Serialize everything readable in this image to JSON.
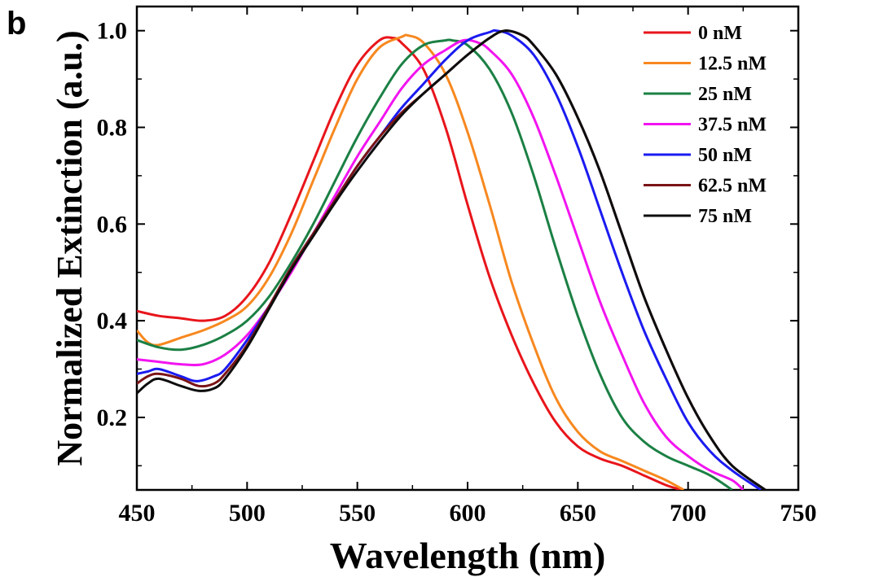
{
  "panel_label": "b",
  "chart_data": {
    "type": "line",
    "title": "",
    "xlabel": "Wavelength (nm)",
    "ylabel": "Normalized Extinction (a.u.)",
    "xlim": [
      450,
      750
    ],
    "ylim": [
      0.05,
      1.05
    ],
    "xticks": [
      450,
      500,
      550,
      600,
      650,
      700,
      750
    ],
    "yticks": [
      0.2,
      0.4,
      0.6,
      0.8,
      1.0
    ],
    "xtick_labels": [
      "450",
      "500",
      "550",
      "600",
      "650",
      "700",
      "750"
    ],
    "ytick_labels": [
      "0.2",
      "0.4",
      "0.6",
      "0.8",
      "1.0"
    ],
    "grid": false,
    "legend_position": "top-right",
    "series": [
      {
        "name": "0 nM",
        "color": "#e8151b",
        "x": [
          450,
          460,
          470,
          480,
          490,
          500,
          510,
          520,
          530,
          540,
          550,
          560,
          566,
          570,
          580,
          590,
          600,
          610,
          620,
          630,
          640,
          650,
          660,
          670,
          680,
          690,
          697
        ],
        "y": [
          0.42,
          0.41,
          0.405,
          0.4,
          0.41,
          0.45,
          0.52,
          0.62,
          0.73,
          0.84,
          0.93,
          0.98,
          0.985,
          0.975,
          0.92,
          0.8,
          0.64,
          0.49,
          0.37,
          0.27,
          0.19,
          0.14,
          0.115,
          0.1,
          0.08,
          0.06,
          0.05
        ]
      },
      {
        "name": "12.5 nM",
        "color": "#f7881f",
        "x": [
          450,
          455,
          460,
          470,
          480,
          490,
          500,
          510,
          520,
          530,
          540,
          550,
          560,
          570,
          573,
          580,
          590,
          600,
          610,
          620,
          630,
          640,
          650,
          660,
          670,
          680,
          690,
          698
        ],
        "y": [
          0.38,
          0.355,
          0.35,
          0.365,
          0.38,
          0.4,
          0.43,
          0.49,
          0.58,
          0.69,
          0.8,
          0.9,
          0.965,
          0.987,
          0.99,
          0.975,
          0.91,
          0.79,
          0.64,
          0.48,
          0.35,
          0.24,
          0.17,
          0.13,
          0.11,
          0.09,
          0.07,
          0.05
        ]
      },
      {
        "name": "25 nM",
        "color": "#1b8044",
        "x": [
          450,
          460,
          470,
          480,
          490,
          500,
          510,
          520,
          530,
          540,
          550,
          560,
          570,
          580,
          590,
          593,
          600,
          610,
          620,
          630,
          640,
          650,
          660,
          670,
          680,
          690,
          700,
          710,
          720
        ],
        "y": [
          0.36,
          0.345,
          0.34,
          0.35,
          0.37,
          0.4,
          0.45,
          0.52,
          0.6,
          0.69,
          0.78,
          0.86,
          0.93,
          0.97,
          0.98,
          0.98,
          0.97,
          0.92,
          0.83,
          0.7,
          0.55,
          0.41,
          0.29,
          0.2,
          0.15,
          0.12,
          0.1,
          0.08,
          0.05
        ]
      },
      {
        "name": "37.5 nM",
        "color": "#f214f0",
        "x": [
          450,
          460,
          470,
          480,
          490,
          500,
          510,
          520,
          530,
          540,
          550,
          560,
          570,
          580,
          590,
          598,
          605,
          610,
          620,
          630,
          640,
          650,
          660,
          670,
          680,
          690,
          700,
          710,
          720,
          725
        ],
        "y": [
          0.32,
          0.315,
          0.31,
          0.31,
          0.33,
          0.37,
          0.43,
          0.5,
          0.58,
          0.66,
          0.74,
          0.81,
          0.88,
          0.93,
          0.96,
          0.98,
          0.975,
          0.96,
          0.91,
          0.82,
          0.7,
          0.57,
          0.44,
          0.33,
          0.23,
          0.16,
          0.12,
          0.09,
          0.07,
          0.05
        ]
      },
      {
        "name": "50 nM",
        "color": "#1b1bf0",
        "x": [
          450,
          455,
          460,
          470,
          477,
          485,
          490,
          500,
          510,
          520,
          530,
          540,
          550,
          560,
          570,
          580,
          590,
          600,
          610,
          613,
          620,
          630,
          640,
          650,
          660,
          670,
          680,
          690,
          700,
          710,
          720,
          733
        ],
        "y": [
          0.29,
          0.295,
          0.3,
          0.285,
          0.275,
          0.285,
          0.3,
          0.36,
          0.43,
          0.51,
          0.58,
          0.65,
          0.72,
          0.78,
          0.84,
          0.89,
          0.94,
          0.98,
          0.997,
          1.0,
          0.99,
          0.95,
          0.87,
          0.76,
          0.63,
          0.5,
          0.38,
          0.28,
          0.19,
          0.13,
          0.09,
          0.05
        ]
      },
      {
        "name": "62.5 nM",
        "color": "#7b1416",
        "x": [
          450,
          455,
          460,
          470,
          478,
          485,
          490,
          500,
          510,
          520,
          530,
          540,
          550,
          560,
          570,
          580,
          590,
          600,
          610,
          617,
          625,
          630,
          640,
          650,
          660,
          670,
          680,
          690,
          700,
          710,
          720,
          735
        ],
        "y": [
          0.27,
          0.285,
          0.29,
          0.28,
          0.265,
          0.27,
          0.29,
          0.35,
          0.43,
          0.51,
          0.58,
          0.65,
          0.72,
          0.78,
          0.83,
          0.87,
          0.91,
          0.95,
          0.985,
          1.0,
          0.99,
          0.97,
          0.91,
          0.82,
          0.71,
          0.58,
          0.45,
          0.34,
          0.24,
          0.16,
          0.1,
          0.05
        ]
      },
      {
        "name": "75 nM",
        "color": "#0d0d0d",
        "x": [
          450,
          455,
          460,
          470,
          478,
          485,
          490,
          500,
          510,
          520,
          530,
          540,
          550,
          560,
          570,
          580,
          590,
          600,
          610,
          617,
          625,
          630,
          640,
          650,
          660,
          670,
          680,
          690,
          700,
          710,
          720,
          735
        ],
        "y": [
          0.25,
          0.27,
          0.28,
          0.265,
          0.255,
          0.26,
          0.28,
          0.345,
          0.425,
          0.505,
          0.575,
          0.645,
          0.71,
          0.77,
          0.825,
          0.87,
          0.91,
          0.95,
          0.985,
          1.0,
          0.99,
          0.97,
          0.91,
          0.82,
          0.71,
          0.58,
          0.45,
          0.34,
          0.24,
          0.16,
          0.1,
          0.05
        ]
      }
    ]
  }
}
